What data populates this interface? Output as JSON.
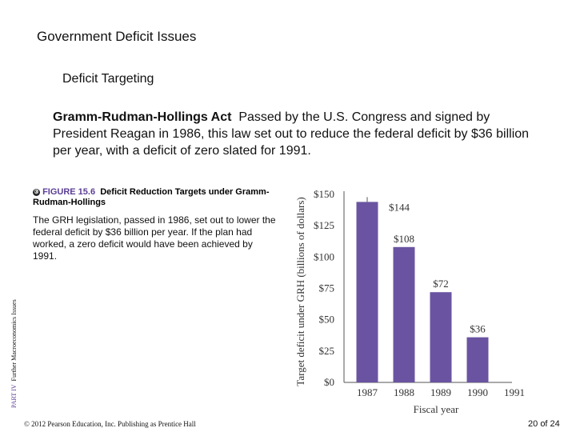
{
  "slide": {
    "title": "Government Deficit Issues",
    "subtitle": "Deficit Targeting",
    "definition_term": "Gramm-Rudman-Hollings Act",
    "definition_text": "Passed by the U.S. Congress and signed by President Reagan in 1986, this law set out to reduce the federal deficit by $36 billion per year, with a deficit of zero slated for 1991.",
    "figure_icon": "③",
    "figure_number": "FIGURE 15.6",
    "figure_title": "Deficit Reduction Targets under Gramm-Rudman-Hollings",
    "figure_description": "The GRH legislation, passed in 1986, set out to lower the federal deficit by $36 billion per year. If the plan had worked, a zero deficit would have been achieved by 1991.",
    "side_part": "PART IV",
    "side_label": "Further Macroeconomics Issues",
    "copyright": "© 2012 Pearson Education, Inc. Publishing as Prentice Hall",
    "page_current": "20",
    "page_of": "of 24"
  },
  "chart_data": {
    "type": "bar",
    "categories": [
      "1987",
      "1988",
      "1989",
      "1990",
      "1991"
    ],
    "values": [
      144,
      108,
      72,
      36,
      0
    ],
    "value_labels": [
      "$144",
      "$108",
      "$72",
      "$36",
      ""
    ],
    "ylabel": "Target deficit under GRH (billions of dollars)",
    "xlabel": "Fiscal year",
    "ylim": [
      0,
      150
    ],
    "yticks": [
      0,
      25,
      50,
      75,
      100,
      125,
      150
    ],
    "ytick_labels": [
      "$0",
      "$25",
      "$50",
      "$75",
      "$100",
      "$125",
      "$150"
    ],
    "bar_color": "#6a54a1"
  }
}
